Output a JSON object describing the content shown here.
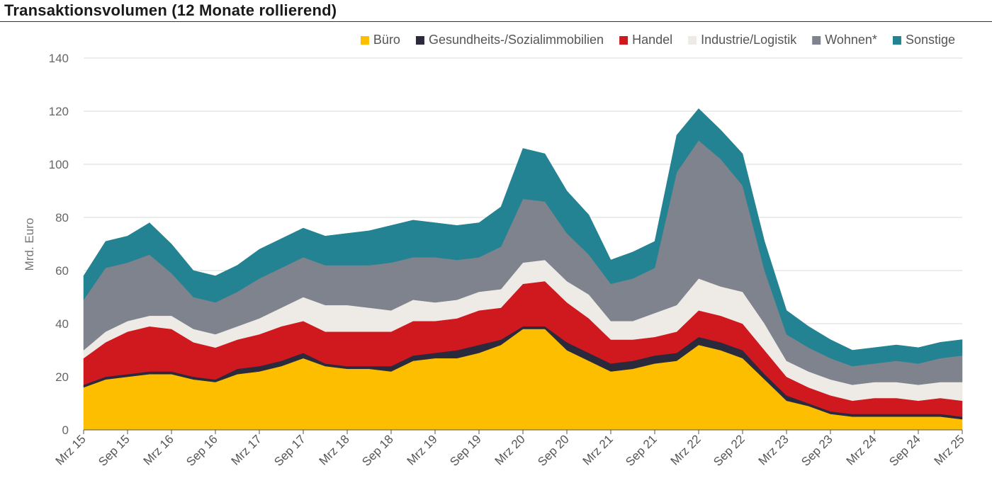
{
  "title": "Transaktionsvolumen (12 Monate rollierend)",
  "chart_data": {
    "type": "area",
    "stacked": true,
    "ylabel": "Mrd. Euro",
    "ylim": [
      0,
      140
    ],
    "yticks": [
      0,
      20,
      40,
      60,
      80,
      100,
      120,
      140
    ],
    "grid": "horizontal",
    "legend_position": "top-right",
    "x_tick_labels": [
      "Mrz 15",
      "Sep 15",
      "Mrz 16",
      "Sep 16",
      "Mrz 17",
      "Sep 17",
      "Mrz 18",
      "Sep 18",
      "Mrz 19",
      "Sep 19",
      "Mrz 20",
      "Sep 20",
      "Mrz 21",
      "Sep 21",
      "Mrz 22",
      "Sep 22",
      "Mrz 23",
      "Sep 23",
      "Mrz 24",
      "Sep 24",
      "Mrz 25"
    ],
    "x": [
      "Mrz 15",
      "Jun 15",
      "Sep 15",
      "Dez 15",
      "Mrz 16",
      "Jun 16",
      "Sep 16",
      "Dez 16",
      "Mrz 17",
      "Jun 17",
      "Sep 17",
      "Dez 17",
      "Mrz 18",
      "Jun 18",
      "Sep 18",
      "Dez 18",
      "Mrz 19",
      "Jun 19",
      "Sep 19",
      "Dez 19",
      "Mrz 20",
      "Jun 20",
      "Sep 20",
      "Dez 20",
      "Mrz 21",
      "Jun 21",
      "Sep 21",
      "Dez 21",
      "Mrz 22",
      "Jun 22",
      "Sep 22",
      "Dez 22",
      "Mrz 23",
      "Jun 23",
      "Sep 23",
      "Dez 23",
      "Mrz 24",
      "Jun 24",
      "Sep 24",
      "Dez 24",
      "Mrz 25"
    ],
    "series": [
      {
        "name": "Büro",
        "color": "#FDBE00",
        "values": [
          16,
          19,
          20,
          21,
          21,
          19,
          18,
          21,
          22,
          24,
          27,
          24,
          23,
          23,
          22,
          26,
          27,
          27,
          29,
          32,
          38,
          38,
          30,
          26,
          22,
          23,
          25,
          26,
          32,
          30,
          27,
          19,
          11,
          9,
          6,
          5,
          5,
          5,
          5,
          5,
          4
        ]
      },
      {
        "name": "Gesundheits-/Sozialimmobilien",
        "color": "#2A2A3C",
        "values": [
          1,
          1,
          1,
          1,
          1,
          1,
          1,
          2,
          2,
          2,
          2,
          1,
          1,
          1,
          2,
          2,
          2,
          3,
          3,
          2,
          1,
          1,
          3,
          3,
          3,
          3,
          3,
          3,
          3,
          3,
          3,
          2,
          2,
          1,
          1,
          1,
          1,
          1,
          1,
          1,
          1
        ]
      },
      {
        "name": "Handel",
        "color": "#D0191F",
        "values": [
          10,
          13,
          16,
          17,
          16,
          13,
          12,
          11,
          12,
          13,
          12,
          12,
          13,
          13,
          13,
          13,
          12,
          12,
          13,
          12,
          16,
          17,
          15,
          13,
          9,
          8,
          7,
          8,
          10,
          10,
          10,
          9,
          7,
          6,
          6,
          5,
          6,
          6,
          5,
          6,
          6
        ]
      },
      {
        "name": "Industrie/Logistik",
        "color": "#EEEAE6",
        "values": [
          3,
          4,
          4,
          4,
          5,
          5,
          5,
          5,
          6,
          7,
          9,
          10,
          10,
          9,
          8,
          8,
          7,
          7,
          7,
          7,
          8,
          8,
          8,
          9,
          7,
          7,
          9,
          10,
          12,
          11,
          12,
          10,
          6,
          6,
          6,
          6,
          6,
          6,
          6,
          6,
          7
        ]
      },
      {
        "name": "Wohnen*",
        "color": "#7E838D",
        "values": [
          19,
          24,
          22,
          23,
          16,
          12,
          12,
          13,
          15,
          15,
          15,
          15,
          15,
          16,
          18,
          16,
          17,
          15,
          13,
          16,
          24,
          22,
          18,
          15,
          14,
          16,
          17,
          50,
          52,
          48,
          40,
          20,
          10,
          9,
          8,
          7,
          7,
          8,
          8,
          9,
          10
        ]
      },
      {
        "name": "Sonstige",
        "color": "#238393",
        "values": [
          9,
          10,
          10,
          12,
          11,
          10,
          10,
          10,
          11,
          11,
          11,
          11,
          12,
          13,
          14,
          14,
          13,
          13,
          13,
          15,
          19,
          18,
          16,
          15,
          9,
          10,
          10,
          14,
          12,
          11,
          12,
          11,
          9,
          8,
          7,
          6,
          6,
          6,
          6,
          6,
          6
        ]
      }
    ]
  }
}
